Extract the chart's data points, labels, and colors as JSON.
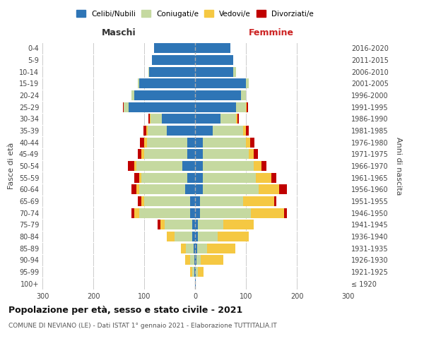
{
  "age_groups": [
    "100+",
    "95-99",
    "90-94",
    "85-89",
    "80-84",
    "75-79",
    "70-74",
    "65-69",
    "60-64",
    "55-59",
    "50-54",
    "45-49",
    "40-44",
    "35-39",
    "30-34",
    "25-29",
    "20-24",
    "15-19",
    "10-14",
    "5-9",
    "0-4"
  ],
  "birth_years": [
    "≤ 1920",
    "1921-1925",
    "1926-1930",
    "1931-1935",
    "1936-1940",
    "1941-1945",
    "1946-1950",
    "1951-1955",
    "1956-1960",
    "1961-1965",
    "1966-1970",
    "1971-1975",
    "1976-1980",
    "1981-1985",
    "1986-1990",
    "1991-1995",
    "1996-2000",
    "2001-2005",
    "2006-2010",
    "2011-2015",
    "2016-2020"
  ],
  "colors": {
    "celibi": "#2e75b6",
    "coniugati": "#c5d9a0",
    "vedovi": "#f5c842",
    "divorziati": "#c00000"
  },
  "title": "Popolazione per età, sesso e stato civile - 2021",
  "subtitle": "COMUNE DI NEVIANO (LE) - Dati ISTAT 1° gennaio 2021 - Elaborazione TUTTITALIA.IT",
  "xlabel_left": "Maschi",
  "xlabel_right": "Femmine",
  "ylabel_left": "Fasce di età",
  "ylabel_right": "Anni di nascita",
  "xlim": 300,
  "legend_labels": [
    "Celibi/Nubili",
    "Coniugati/e",
    "Vedovi/e",
    "Divorziati/e"
  ],
  "background_color": "#ffffff",
  "grid_color": "#cccccc",
  "m_cel": [
    0,
    2,
    2,
    3,
    5,
    5,
    10,
    10,
    20,
    15,
    25,
    15,
    15,
    55,
    65,
    130,
    120,
    110,
    90,
    85,
    80
  ],
  "m_con": [
    0,
    3,
    8,
    15,
    35,
    55,
    100,
    90,
    90,
    90,
    90,
    85,
    80,
    38,
    22,
    10,
    5,
    3,
    2,
    0,
    0
  ],
  "m_ved": [
    0,
    5,
    10,
    10,
    15,
    8,
    10,
    5,
    5,
    5,
    5,
    5,
    5,
    3,
    2,
    0,
    0,
    0,
    0,
    0,
    0
  ],
  "m_div": [
    0,
    0,
    0,
    0,
    0,
    5,
    5,
    8,
    10,
    10,
    12,
    8,
    8,
    5,
    3,
    2,
    0,
    0,
    0,
    0,
    0
  ],
  "f_nub": [
    1,
    2,
    3,
    4,
    5,
    5,
    10,
    10,
    15,
    15,
    15,
    15,
    15,
    35,
    50,
    80,
    90,
    100,
    75,
    75,
    70
  ],
  "f_con": [
    0,
    3,
    8,
    20,
    40,
    50,
    100,
    85,
    110,
    105,
    100,
    90,
    85,
    60,
    30,
    20,
    10,
    5,
    5,
    0,
    0
  ],
  "f_ved": [
    1,
    12,
    45,
    55,
    60,
    60,
    65,
    60,
    40,
    30,
    15,
    10,
    8,
    5,
    3,
    2,
    0,
    0,
    0,
    0,
    0
  ],
  "f_div": [
    0,
    0,
    0,
    0,
    0,
    0,
    5,
    5,
    15,
    10,
    10,
    8,
    8,
    5,
    3,
    2,
    0,
    0,
    0,
    0,
    0
  ]
}
